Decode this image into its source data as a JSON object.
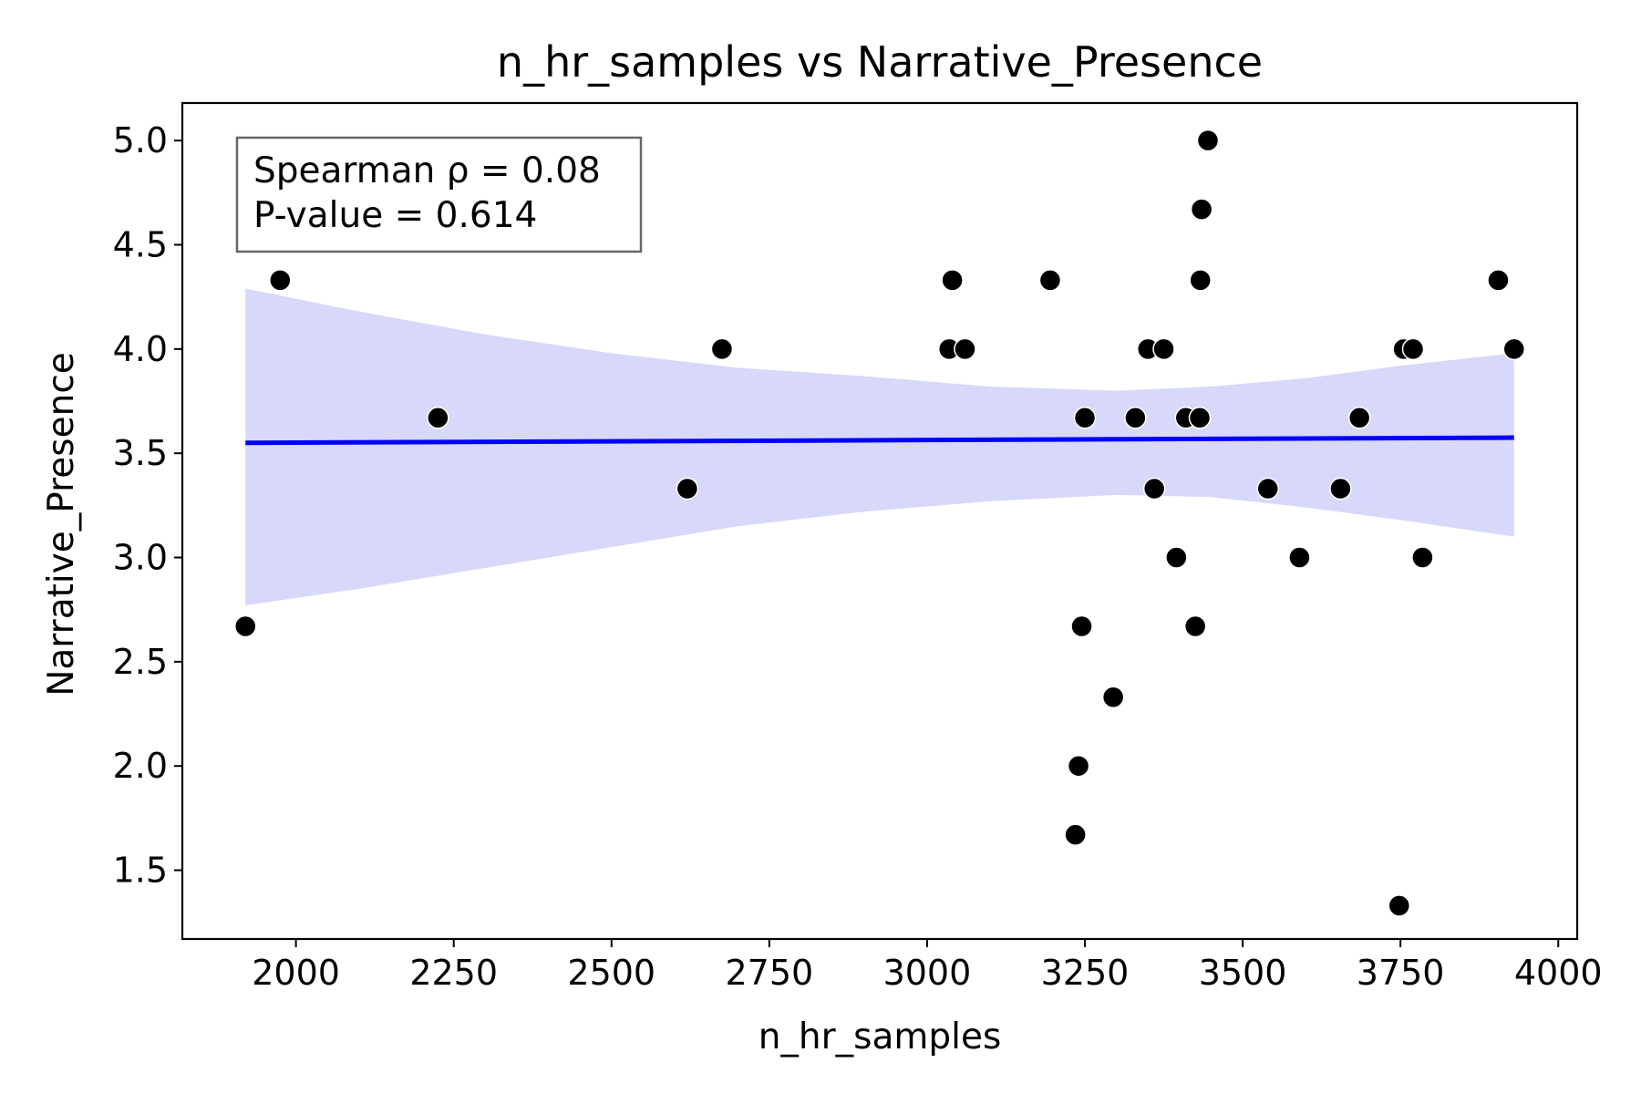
{
  "chart_data": {
    "type": "scatter",
    "title": "n_hr_samples vs Narrative_Presence",
    "xlabel": "n_hr_samples",
    "ylabel": "Narrative_Presence",
    "xlim": [
      1820,
      4030
    ],
    "ylim": [
      1.17,
      5.18
    ],
    "x_ticks": [
      2000,
      2250,
      2500,
      2750,
      3000,
      3250,
      3500,
      3750,
      4000
    ],
    "y_ticks": [
      1.5,
      2.0,
      2.5,
      3.0,
      3.5,
      4.0,
      4.5,
      5.0
    ],
    "x_tick_labels": [
      "2000",
      "2250",
      "2500",
      "2750",
      "3000",
      "3250",
      "3500",
      "3750",
      "4000"
    ],
    "y_tick_labels": [
      "1.5",
      "2.0",
      "2.5",
      "3.0",
      "3.5",
      "4.0",
      "4.5",
      "5.0"
    ],
    "grid": false,
    "stats": {
      "spearman": "Spearman ρ = 0.08",
      "pvalue": "P-value = 0.614"
    },
    "points": [
      {
        "x": 1920,
        "y": 2.67
      },
      {
        "x": 1975,
        "y": 4.33
      },
      {
        "x": 2225,
        "y": 3.67
      },
      {
        "x": 2620,
        "y": 3.33
      },
      {
        "x": 2675,
        "y": 4.0
      },
      {
        "x": 3035,
        "y": 4.0
      },
      {
        "x": 3040,
        "y": 4.33
      },
      {
        "x": 3060,
        "y": 4.0
      },
      {
        "x": 3195,
        "y": 4.33
      },
      {
        "x": 3235,
        "y": 1.67
      },
      {
        "x": 3240,
        "y": 2.0
      },
      {
        "x": 3245,
        "y": 2.67
      },
      {
        "x": 3250,
        "y": 3.67
      },
      {
        "x": 3295,
        "y": 2.33
      },
      {
        "x": 3330,
        "y": 3.67
      },
      {
        "x": 3350,
        "y": 4.0
      },
      {
        "x": 3360,
        "y": 3.33
      },
      {
        "x": 3375,
        "y": 4.0
      },
      {
        "x": 3395,
        "y": 3.0
      },
      {
        "x": 3410,
        "y": 3.67
      },
      {
        "x": 3425,
        "y": 2.67
      },
      {
        "x": 3432,
        "y": 3.67
      },
      {
        "x": 3433,
        "y": 4.33
      },
      {
        "x": 3435,
        "y": 4.67
      },
      {
        "x": 3445,
        "y": 5.0
      },
      {
        "x": 3540,
        "y": 3.33
      },
      {
        "x": 3590,
        "y": 3.0
      },
      {
        "x": 3655,
        "y": 3.33
      },
      {
        "x": 3685,
        "y": 3.67
      },
      {
        "x": 3748,
        "y": 1.33
      },
      {
        "x": 3755,
        "y": 4.0
      },
      {
        "x": 3770,
        "y": 4.0
      },
      {
        "x": 3785,
        "y": 3.0
      },
      {
        "x": 3905,
        "y": 4.33
      },
      {
        "x": 3930,
        "y": 4.0
      }
    ],
    "regression": {
      "x": [
        1920,
        3930
      ],
      "y": [
        3.55,
        3.575
      ],
      "color": "#0000ff"
    },
    "confidence_band": {
      "x": [
        1920,
        2100,
        2300,
        2500,
        2700,
        2900,
        3100,
        3300,
        3450,
        3600,
        3750,
        3930
      ],
      "upper": [
        4.29,
        4.18,
        4.07,
        3.98,
        3.91,
        3.87,
        3.82,
        3.8,
        3.82,
        3.86,
        3.92,
        3.98
      ],
      "lower": [
        2.77,
        2.85,
        2.95,
        3.05,
        3.15,
        3.22,
        3.27,
        3.3,
        3.29,
        3.24,
        3.18,
        3.1
      ],
      "color": "#d8d8fb"
    },
    "point_color": "#000000"
  }
}
